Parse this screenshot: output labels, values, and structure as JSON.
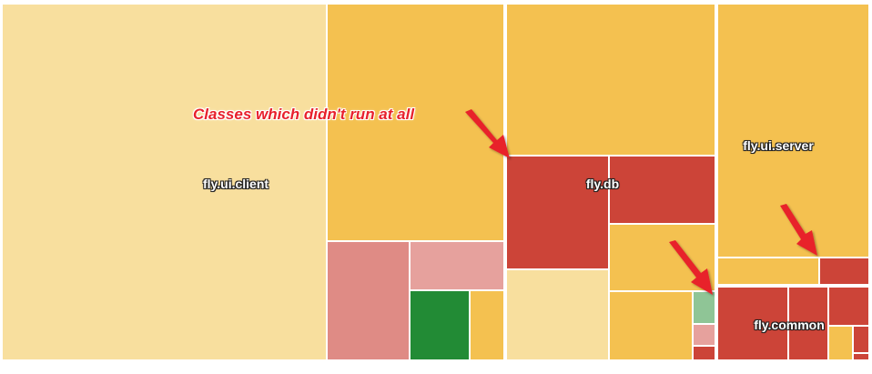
{
  "packages": [
    {
      "id": "client",
      "label": "fly.ui.client"
    },
    {
      "id": "db",
      "label": "fly.db"
    },
    {
      "id": "server",
      "label": "fly.ui.server"
    },
    {
      "id": "common",
      "label": "fly.common"
    }
  ],
  "annotation": {
    "text": "Classes which didn't run at all"
  },
  "colors": {
    "light_yellow": "#f8df9e",
    "yellow": "#f4c150",
    "red": "#cc4438",
    "pink": "#df8b85",
    "light_pink": "#e6a19d",
    "green": "#228b35",
    "light_green": "#8fc596",
    "arrow": "#e8212c"
  }
}
